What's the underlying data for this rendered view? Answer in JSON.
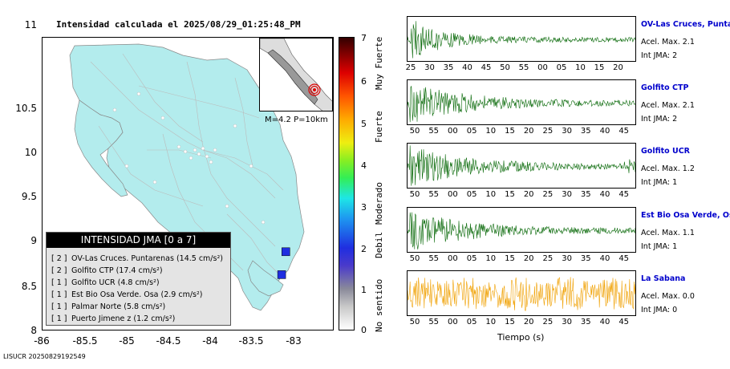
{
  "map": {
    "title": "Intensidad calculada el 2025/08/29_01:25:48_PM",
    "y_ticks": [
      "11",
      "10.5",
      "10",
      "9.5",
      "9",
      "8.5",
      "8"
    ],
    "x_ticks": [
      "-86",
      "-85.5",
      "-85",
      "-84.5",
      "-84",
      "-83.5",
      "-83"
    ],
    "land_color": "#b3eced",
    "stations": [
      {
        "lon": -83.1,
        "lat": 8.9,
        "level": 2,
        "color": "#1f2ee0"
      },
      {
        "lon": -83.15,
        "lat": 8.64,
        "level": 2,
        "color": "#1f2ee0"
      }
    ]
  },
  "inset": {
    "label": "M=4.2 P=10km"
  },
  "legend": {
    "title": "INTENSIDAD JMA [0 a 7]",
    "rows": [
      {
        "level": "[ 2 ]",
        "name": "OV-Las Cruces. Puntarenas",
        "value": "(14.5 cm/s²)"
      },
      {
        "level": "[ 2 ]",
        "name": "Golfito CTP",
        "value": "(17.4 cm/s²)"
      },
      {
        "level": "[ 1 ]",
        "name": "Golfito UCR",
        "value": "(4.8 cm/s²)"
      },
      {
        "level": "[ 1 ]",
        "name": "Est Bio Osa Verde. Osa",
        "value": "(2.9 cm/s²)"
      },
      {
        "level": "[ 1 ]",
        "name": "Palmar Norte",
        "value": "(5.8 cm/s²)"
      },
      {
        "level": "[ 1 ]",
        "name": "Puerto Jimene z",
        "value": "(1.2 cm/s²)"
      }
    ]
  },
  "colorbar": {
    "numbers": [
      "7",
      "6",
      "5",
      "4",
      "3",
      "2",
      "1",
      "0"
    ],
    "words": [
      "Muy Fuerte",
      "Fuerte",
      "Moderado",
      "Debil",
      "No sentido"
    ]
  },
  "traces": [
    {
      "name": "OV-Las Cruces, Puntar",
      "acel": "Acel. Max. 2.1",
      "jma": "Int JMA: 2",
      "color": "#0a6a0a",
      "ticks": [
        "25",
        "30",
        "35",
        "40",
        "45",
        "50",
        "55",
        "00",
        "05",
        "10",
        "15",
        "20"
      ]
    },
    {
      "name": "Golfito CTP",
      "acel": "Acel. Max. 2.1",
      "jma": "Int JMA: 2",
      "color": "#0a6a0a",
      "ticks": [
        "50",
        "55",
        "00",
        "05",
        "10",
        "15",
        "20",
        "25",
        "30",
        "35",
        "40",
        "45"
      ]
    },
    {
      "name": "Golfito UCR",
      "acel": "Acel. Max. 1.2",
      "jma": "Int JMA: 1",
      "color": "#0a6a0a",
      "ticks": [
        "50",
        "55",
        "00",
        "05",
        "10",
        "15",
        "20",
        "25",
        "30",
        "35",
        "40",
        "45"
      ]
    },
    {
      "name": "Est Bio Osa Verde, Osa",
      "acel": "Acel. Max. 1.1",
      "jma": "Int JMA: 1",
      "color": "#0a6a0a",
      "ticks": [
        "50",
        "55",
        "00",
        "05",
        "10",
        "15",
        "20",
        "25",
        "30",
        "35",
        "40",
        "45"
      ]
    },
    {
      "name": "La Sabana",
      "acel": "Acel. Max. 0.0",
      "jma": "Int JMA: 0",
      "color": "#f0a000",
      "ticks": [
        "50",
        "55",
        "00",
        "05",
        "10",
        "15",
        "20",
        "25",
        "30",
        "35",
        "40",
        "45"
      ]
    }
  ],
  "tiempo_label": "Tiempo (s)",
  "footer": "LISUCR 20250829192549"
}
